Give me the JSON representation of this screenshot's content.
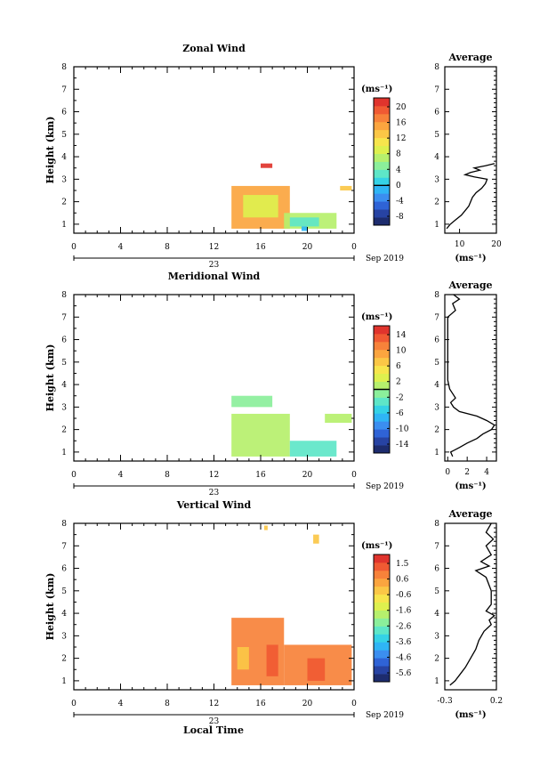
{
  "figure": {
    "date_label": "Sep 2019",
    "day_label": "23",
    "xlabel": "Local Time",
    "ylabel": "Height (km)",
    "avg_title": "Average",
    "cb_unit": "(ms⁻¹)",
    "avg_unit": "(ms⁻¹)"
  },
  "colormap": [
    "#1d2c6e",
    "#2743a3",
    "#2f63d6",
    "#3b8ef0",
    "#2fb5f5",
    "#35d2e6",
    "#5ee6c8",
    "#8bef9b",
    "#b6f06d",
    "#def04e",
    "#f7e54c",
    "#fbc746",
    "#fba53f",
    "#f7823a",
    "#f05a33",
    "#e0342d"
  ],
  "chart_data": [
    {
      "type": "heatmap",
      "title": "Zonal Wind",
      "xlabel": "Local Time",
      "ylabel": "Height (km)",
      "xlim": [
        0,
        24
      ],
      "ylim": [
        0.6,
        8
      ],
      "xticks": [
        "0",
        "4",
        "8",
        "12",
        "16",
        "20",
        "0"
      ],
      "yticks": [
        "1",
        "2",
        "3",
        "4",
        "5",
        "6",
        "7",
        "8"
      ],
      "colorbar": {
        "ticks": [
          "20",
          "16",
          "12",
          "8",
          "4",
          "0",
          "-4",
          "-8"
        ],
        "range": [
          -10,
          22
        ],
        "zero_line": 0
      },
      "regions": [
        {
          "x": [
            13.5,
            18.5
          ],
          "y": [
            0.8,
            2.7
          ],
          "value": 14
        },
        {
          "x": [
            14.5,
            17.5
          ],
          "y": [
            1.3,
            2.3
          ],
          "value": 9
        },
        {
          "x": [
            18.0,
            22.5
          ],
          "y": [
            0.8,
            1.5
          ],
          "value": 6
        },
        {
          "x": [
            18.5,
            21.0
          ],
          "y": [
            0.9,
            1.3
          ],
          "value": 3
        },
        {
          "x": [
            16.0,
            17.0
          ],
          "y": [
            3.5,
            3.7
          ],
          "value": 20
        },
        {
          "x": [
            22.8,
            23.8
          ],
          "y": [
            2.5,
            2.7
          ],
          "value": 12
        },
        {
          "x": [
            19.5,
            20.0
          ],
          "y": [
            0.7,
            0.9
          ],
          "value": -2
        }
      ],
      "average": {
        "xlabel": "(ms⁻¹)",
        "xlim": [
          6,
          20
        ],
        "xticks": [
          "10",
          "20"
        ],
        "ylim": [
          0.6,
          8
        ],
        "height": [
          0.8,
          1.0,
          1.2,
          1.4,
          1.6,
          1.8,
          2.0,
          2.2,
          2.4,
          2.6,
          2.8,
          3.0,
          3.1,
          3.2,
          3.3,
          3.4,
          3.5,
          3.6,
          3.7
        ],
        "speed": [
          6.5,
          7.5,
          9.0,
          10.5,
          11.5,
          12.5,
          13.0,
          13.5,
          14.5,
          16.0,
          17.0,
          17.5,
          14.0,
          11.5,
          13.0,
          15.5,
          14.0,
          17.0,
          19.5
        ]
      }
    },
    {
      "type": "heatmap",
      "title": "Meridional Wind",
      "xlabel": "Local Time",
      "ylabel": "Height (km)",
      "xlim": [
        0,
        24
      ],
      "ylim": [
        0.6,
        8
      ],
      "xticks": [
        "0",
        "4",
        "8",
        "12",
        "16",
        "20",
        "0"
      ],
      "yticks": [
        "1",
        "2",
        "3",
        "4",
        "5",
        "6",
        "7",
        "8"
      ],
      "colorbar": {
        "ticks": [
          "14",
          "10",
          "6",
          "2",
          "-2",
          "-6",
          "-10",
          "-14"
        ],
        "range": [
          -16,
          16
        ],
        "zero_line": 0
      },
      "regions": [
        {
          "x": [
            13.5,
            18.5
          ],
          "y": [
            0.8,
            2.7
          ],
          "value": 0
        },
        {
          "x": [
            18.5,
            22.5
          ],
          "y": [
            0.8,
            1.5
          ],
          "value": -3
        },
        {
          "x": [
            13.5,
            17.0
          ],
          "y": [
            3.0,
            3.5
          ],
          "value": -2
        },
        {
          "x": [
            21.5,
            23.8
          ],
          "y": [
            2.3,
            2.7
          ],
          "value": 1
        }
      ],
      "average": {
        "xlabel": "(ms⁻¹)",
        "xlim": [
          -0.3,
          5
        ],
        "xticks": [
          "0",
          "2",
          "4"
        ],
        "ylim": [
          0.6,
          8
        ],
        "height": [
          0.8,
          1.0,
          1.2,
          1.4,
          1.6,
          1.8,
          2.0,
          2.2,
          2.4,
          2.6,
          2.8,
          3.0,
          3.2,
          3.4,
          3.6,
          3.8,
          4.2,
          5.0,
          6.0,
          7.0,
          7.3,
          7.6,
          7.8,
          8.0
        ],
        "speed": [
          0.5,
          0.3,
          1.2,
          2.0,
          3.0,
          3.6,
          4.5,
          4.8,
          4.0,
          3.0,
          1.2,
          0.6,
          0.3,
          0.8,
          0.5,
          0.2,
          0.0,
          0.0,
          0.0,
          0.0,
          0.8,
          0.5,
          1.2,
          0.6
        ]
      }
    },
    {
      "type": "heatmap",
      "title": "Vertical Wind",
      "xlabel": "Local Time",
      "ylabel": "Height (km)",
      "xlim": [
        0,
        24
      ],
      "ylim": [
        0.6,
        8
      ],
      "xticks": [
        "0",
        "4",
        "8",
        "12",
        "16",
        "20",
        "0"
      ],
      "yticks": [
        "1",
        "2",
        "3",
        "4",
        "5",
        "6",
        "7",
        "8"
      ],
      "colorbar": {
        "ticks": [
          "1.5",
          "0.6",
          "-0.6",
          "-1.6",
          "-2.6",
          "-3.6",
          "-4.6",
          "-5.6"
        ],
        "range": [
          -6,
          2
        ],
        "zero_line": null
      },
      "regions": [
        {
          "x": [
            13.5,
            18.0
          ],
          "y": [
            0.8,
            3.8
          ],
          "value": 0.8
        },
        {
          "x": [
            18.0,
            23.8
          ],
          "y": [
            0.8,
            2.6
          ],
          "value": 0.6
        },
        {
          "x": [
            16.5,
            17.5
          ],
          "y": [
            1.2,
            2.6
          ],
          "value": 1.4
        },
        {
          "x": [
            20.0,
            21.5
          ],
          "y": [
            1.0,
            2.0
          ],
          "value": 1.2
        },
        {
          "x": [
            14.0,
            15.0
          ],
          "y": [
            1.5,
            2.5
          ],
          "value": -0.5
        },
        {
          "x": [
            20.5,
            21.0
          ],
          "y": [
            7.1,
            7.5
          ],
          "value": -0.4
        },
        {
          "x": [
            16.3,
            16.6
          ],
          "y": [
            7.7,
            7.9
          ],
          "value": -0.4
        }
      ],
      "average": {
        "xlabel": "(ms⁻¹)",
        "xlim": [
          -0.3,
          0.2
        ],
        "xticks": [
          "-0.3",
          "0.2"
        ],
        "ylim": [
          0.6,
          8
        ],
        "height": [
          0.8,
          1.0,
          1.3,
          1.6,
          2.0,
          2.4,
          2.8,
          3.2,
          3.5,
          3.7,
          3.9,
          4.1,
          4.4,
          5.0,
          5.6,
          5.9,
          6.1,
          6.3,
          6.6,
          7.0,
          7.3,
          7.6,
          8.0
        ],
        "speed": [
          -0.25,
          -0.2,
          -0.15,
          -0.1,
          -0.05,
          0.0,
          0.03,
          0.08,
          0.15,
          0.13,
          0.18,
          0.1,
          0.15,
          0.15,
          0.1,
          0.0,
          0.13,
          0.05,
          0.15,
          0.1,
          0.17,
          0.1,
          0.15
        ]
      }
    }
  ]
}
